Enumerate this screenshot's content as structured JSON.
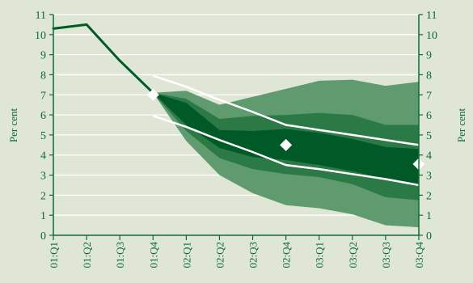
{
  "chart_data": {
    "type": "area",
    "categories": [
      "01:Q1",
      "01:Q2",
      "01:Q3",
      "01:Q4",
      "02:Q1",
      "02:Q2",
      "02:Q3",
      "02:Q4",
      "03:Q1",
      "03:Q2",
      "03:Q3",
      "03:Q4"
    ],
    "ylim": [
      0,
      11
    ],
    "yticks": [
      0,
      1,
      2,
      3,
      4,
      5,
      6,
      7,
      8,
      9,
      10,
      11
    ],
    "ylabel_left": "Per cent",
    "ylabel_right": "Per cent",
    "grid": true,
    "history": {
      "x": [
        0,
        1,
        2,
        3
      ],
      "values": [
        10.3,
        10.5,
        8.7,
        7.1
      ]
    },
    "fan_bands": [
      {
        "name": "outer",
        "x": [
          3,
          4,
          5,
          6,
          7,
          8,
          9,
          10,
          11
        ],
        "upper": [
          7.1,
          7.2,
          6.5,
          6.9,
          7.3,
          7.7,
          7.75,
          7.45,
          7.65
        ],
        "lower": [
          7.1,
          4.7,
          3.0,
          2.1,
          1.5,
          1.35,
          1.05,
          0.5,
          0.4
        ]
      },
      {
        "name": "middle",
        "x": [
          3,
          4,
          5,
          6,
          7,
          8,
          9,
          10,
          11
        ],
        "upper": [
          7.1,
          6.8,
          5.8,
          5.95,
          6.0,
          6.1,
          6.0,
          5.5,
          5.5
        ],
        "lower": [
          7.1,
          5.2,
          3.85,
          3.3,
          3.05,
          2.9,
          2.55,
          1.9,
          1.75
        ]
      },
      {
        "name": "inner",
        "x": [
          3,
          4,
          5,
          6,
          7,
          8,
          9,
          10,
          11
        ],
        "upper": [
          7.1,
          6.6,
          5.25,
          5.2,
          5.3,
          5.1,
          4.8,
          4.4,
          4.3
        ],
        "lower": [
          7.1,
          5.5,
          4.35,
          3.9,
          3.75,
          3.5,
          3.2,
          2.8,
          2.55
        ]
      }
    ],
    "white_lines": [
      {
        "x": [
          3,
          4,
          5,
          6,
          7,
          8,
          9,
          10,
          11
        ],
        "values": [
          7.95,
          7.4,
          6.75,
          6.15,
          5.5,
          5.25,
          5.0,
          4.75,
          4.5
        ]
      },
      {
        "x": [
          3,
          4,
          5,
          6,
          7,
          8,
          9,
          10,
          11
        ],
        "values": [
          5.95,
          5.4,
          4.75,
          4.15,
          3.5,
          3.3,
          3.05,
          2.8,
          2.5
        ]
      }
    ],
    "diamonds": {
      "x": [
        3,
        7,
        11
      ],
      "values": [
        7.0,
        4.5,
        3.55
      ]
    },
    "colors": {
      "background": "#dfe6d6",
      "outer_band": "#5f9b6f",
      "middle_band": "#2b7a46",
      "inner_band": "#005a27",
      "history_line": "#005a27",
      "gridline": "#ffffff",
      "text": "#0b6a33"
    }
  }
}
